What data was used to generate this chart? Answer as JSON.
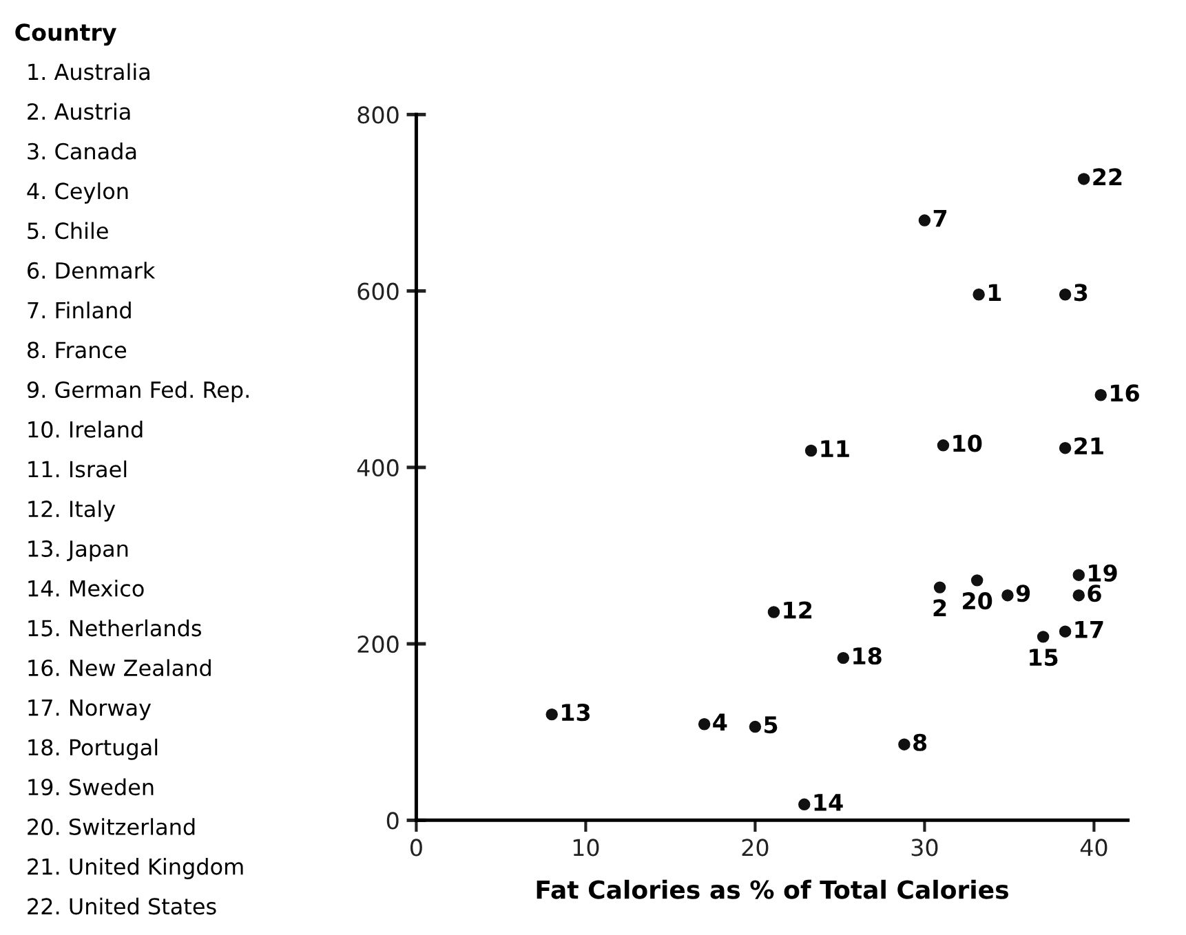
{
  "chart_data": {
    "type": "scatter",
    "xlabel": "Fat Calories as % of Total Calories",
    "x": [
      33.2,
      30.9,
      38.3,
      17.0,
      20.0,
      39.1,
      30.0,
      28.8,
      34.9,
      31.1,
      23.3,
      21.1,
      8.0,
      22.9,
      37.0,
      40.4,
      38.3,
      25.2,
      39.1,
      33.1,
      38.3,
      39.4
    ],
    "series": [
      {
        "color": "#111111",
        "values": [
          596,
          264,
          596,
          109,
          106,
          255,
          680,
          86,
          255,
          425,
          419,
          236,
          120,
          18,
          208,
          482,
          214,
          184,
          278,
          272,
          422,
          727
        ]
      }
    ],
    "marker": "circle",
    "xlim": [
      0,
      42
    ],
    "ylim": [
      0,
      800
    ],
    "xticks": [
      0,
      10,
      20,
      30,
      40
    ],
    "yticks": [
      0,
      200,
      400,
      600,
      800
    ],
    "grid": false,
    "legend": false,
    "annotations": [
      {
        "text": "1",
        "x": 33.2,
        "y": 596
      },
      {
        "text": "2",
        "x": 30.9,
        "y": 264
      },
      {
        "text": "3",
        "x": 38.3,
        "y": 596
      },
      {
        "text": "4",
        "x": 17.0,
        "y": 109
      },
      {
        "text": "5",
        "x": 20.0,
        "y": 106
      },
      {
        "text": "6",
        "x": 39.1,
        "y": 255
      },
      {
        "text": "7",
        "x": 30.0,
        "y": 680
      },
      {
        "text": "8",
        "x": 28.8,
        "y": 86
      },
      {
        "text": "9",
        "x": 34.9,
        "y": 255
      },
      {
        "text": "10",
        "x": 31.1,
        "y": 425
      },
      {
        "text": "11",
        "x": 23.3,
        "y": 419
      },
      {
        "text": "12",
        "x": 21.1,
        "y": 236
      },
      {
        "text": "13",
        "x": 8.0,
        "y": 120
      },
      {
        "text": "14",
        "x": 22.9,
        "y": 18
      },
      {
        "text": "15",
        "x": 37.0,
        "y": 208
      },
      {
        "text": "16",
        "x": 40.4,
        "y": 482
      },
      {
        "text": "17",
        "x": 38.3,
        "y": 214
      },
      {
        "text": "18",
        "x": 25.2,
        "y": 184
      },
      {
        "text": "19",
        "x": 39.1,
        "y": 278
      },
      {
        "text": "20",
        "x": 33.1,
        "y": 272
      },
      {
        "text": "21",
        "x": 38.3,
        "y": 422
      },
      {
        "text": "22",
        "x": 39.4,
        "y": 727
      },
      "Country",
      "1. Australia",
      "2. Austria",
      "3. Canada",
      "4. Ceylon",
      "5. Chile",
      "6. Denmark",
      "7. Finland",
      "8. France",
      "9. German Fed. Rep.",
      "10. Ireland",
      "11. Israel",
      "12. Italy",
      "13. Japan",
      "14. Mexico",
      "15. Netherlands",
      "16. New Zealand",
      "17. Norway",
      "18. Portugal",
      "19. Sweden",
      "20. Switzerland",
      "21. United Kingdom",
      "22. United States"
    ]
  }
}
